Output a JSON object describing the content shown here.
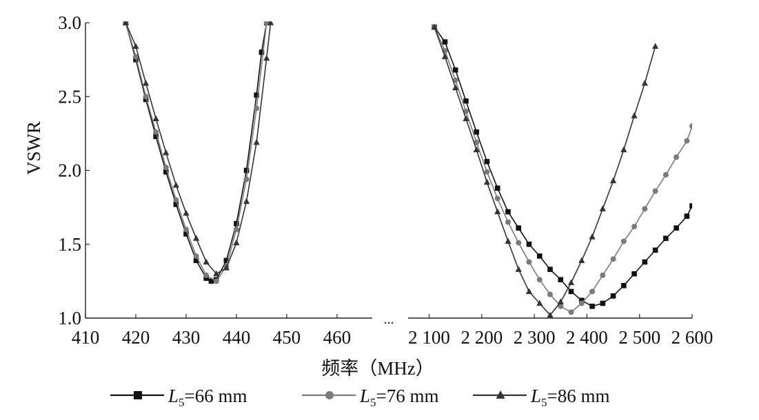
{
  "chart_data": {
    "type": "line",
    "xlabel": "频率（MHz）",
    "ylabel": "VSWR",
    "ylim": [
      1.0,
      3.0
    ],
    "yticks": [
      "1.0",
      "1.5",
      "2.0",
      "2.5",
      "3.0"
    ],
    "grid": false,
    "break_marker": "...",
    "panels": [
      {
        "name": "low",
        "xlim": [
          410,
          467
        ],
        "xticks": [
          "410",
          "420",
          "430",
          "440",
          "450",
          "460"
        ],
        "series": [
          {
            "name": "L5=66 mm",
            "x": [
              418,
              420,
              422,
              424,
              426,
              428,
              430,
              432,
              434,
              435,
              436,
              438,
              440,
              442,
              444,
              445,
              446
            ],
            "y": [
              3.0,
              2.75,
              2.48,
              2.23,
              1.99,
              1.77,
              1.57,
              1.39,
              1.27,
              1.25,
              1.26,
              1.39,
              1.64,
              2.0,
              2.51,
              2.8,
              3.0
            ]
          },
          {
            "name": "L5=76 mm",
            "x": [
              418,
              420,
              422,
              424,
              426,
              428,
              430,
              432,
              434,
              436,
              438,
              440,
              442,
              444,
              446
            ],
            "y": [
              3.0,
              2.77,
              2.5,
              2.26,
              2.02,
              1.8,
              1.6,
              1.42,
              1.29,
              1.25,
              1.35,
              1.6,
              1.94,
              2.42,
              3.0
            ]
          },
          {
            "name": "L5=86 mm",
            "x": [
              418,
              420,
              422,
              424,
              426,
              428,
              430,
              432,
              434,
              436,
              438,
              440,
              442,
              444,
              446,
              446.8
            ],
            "y": [
              3.0,
              2.84,
              2.59,
              2.35,
              2.12,
              1.9,
              1.71,
              1.54,
              1.38,
              1.3,
              1.34,
              1.51,
              1.79,
              2.19,
              2.76,
              3.0
            ]
          }
        ]
      },
      {
        "name": "high",
        "xlim": [
          2060,
          2600
        ],
        "xticks": [
          "2 100",
          "2 200",
          "2 300",
          "2 400",
          "2 500",
          "2 600"
        ],
        "series": [
          {
            "name": "L5=66 mm",
            "x": [
              2110,
              2130,
              2150,
              2170,
              2190,
              2210,
              2230,
              2250,
              2270,
              2290,
              2310,
              2330,
              2350,
              2370,
              2390,
              2410,
              2430,
              2450,
              2470,
              2490,
              2510,
              2530,
              2550,
              2570,
              2590,
              2600
            ],
            "y": [
              2.97,
              2.87,
              2.68,
              2.47,
              2.26,
              2.06,
              1.88,
              1.72,
              1.61,
              1.5,
              1.42,
              1.33,
              1.26,
              1.18,
              1.12,
              1.08,
              1.1,
              1.15,
              1.22,
              1.3,
              1.38,
              1.46,
              1.54,
              1.61,
              1.69,
              1.76
            ]
          },
          {
            "name": "L5=76 mm",
            "x": [
              2110,
              2130,
              2150,
              2170,
              2190,
              2210,
              2230,
              2250,
              2270,
              2290,
              2310,
              2330,
              2350,
              2370,
              2390,
              2410,
              2430,
              2450,
              2470,
              2490,
              2510,
              2530,
              2550,
              2570,
              2590,
              2600
            ],
            "y": [
              2.97,
              2.81,
              2.61,
              2.4,
              2.19,
              1.99,
              1.81,
              1.65,
              1.51,
              1.38,
              1.26,
              1.16,
              1.08,
              1.04,
              1.1,
              1.18,
              1.29,
              1.4,
              1.52,
              1.62,
              1.74,
              1.86,
              1.97,
              2.09,
              2.2,
              2.3
            ]
          },
          {
            "name": "L5=86 mm",
            "x": [
              2110,
              2130,
              2150,
              2170,
              2190,
              2210,
              2230,
              2250,
              2270,
              2290,
              2310,
              2330,
              2350,
              2370,
              2390,
              2410,
              2430,
              2450,
              2470,
              2490,
              2510,
              2530
            ],
            "y": [
              2.97,
              2.77,
              2.56,
              2.35,
              2.14,
              1.92,
              1.72,
              1.52,
              1.33,
              1.18,
              1.1,
              1.02,
              1.11,
              1.24,
              1.39,
              1.55,
              1.74,
              1.93,
              2.14,
              2.37,
              2.59,
              2.84
            ]
          }
        ]
      }
    ],
    "legend": {
      "placement": "bottom",
      "entries": [
        {
          "prefix": "L",
          "subscript": "5",
          "suffix": "=66 mm",
          "marker": "square",
          "color": "#111111"
        },
        {
          "prefix": "L",
          "subscript": "5",
          "suffix": "=76 mm",
          "marker": "circle",
          "color": "#7a7a7a"
        },
        {
          "prefix": "L",
          "subscript": "5",
          "suffix": "=86 mm",
          "marker": "triangle",
          "color": "#333333"
        }
      ]
    },
    "series_colors": [
      "#111111",
      "#7a7a7a",
      "#333333"
    ],
    "series_markers": [
      "square",
      "circle",
      "triangle"
    ]
  }
}
